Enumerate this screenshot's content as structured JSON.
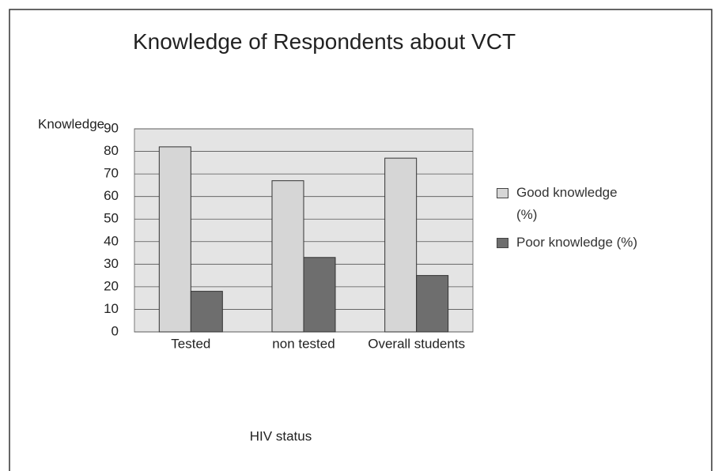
{
  "chart_data": {
    "type": "bar",
    "title": "Knowledge of Respondents about VCT",
    "y_label": "Knowledge",
    "x_label": "HIV status",
    "categories": [
      "Tested",
      "non tested",
      "Overall students"
    ],
    "series": [
      {
        "name": "Good knowledge (%)",
        "color": "#d6d6d6",
        "values": [
          82,
          67,
          77
        ]
      },
      {
        "name": "Poor knowledge (%)",
        "color": "#6e6e6e",
        "values": [
          18,
          33,
          25
        ]
      }
    ],
    "ylim": [
      0,
      90
    ],
    "yticks": [
      0,
      10,
      20,
      30,
      40,
      50,
      60,
      70,
      80,
      90
    ],
    "grid": true
  }
}
